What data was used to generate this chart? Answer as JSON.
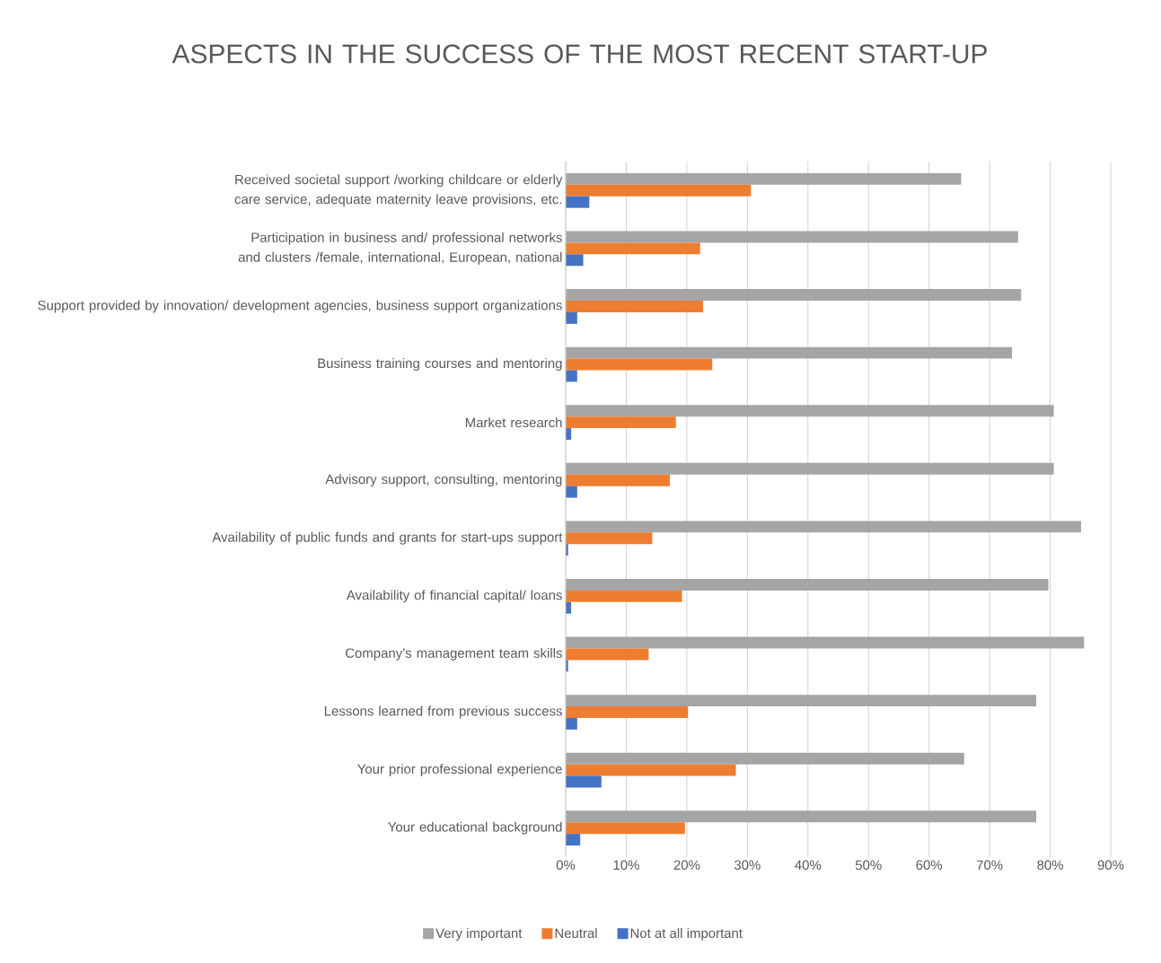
{
  "chart_data": {
    "type": "bar",
    "orientation": "horizontal",
    "title": "ASPECTS IN THE SUCCESS OF THE MOST RECENT START-UP",
    "categories": [
      "Received societal support /working childcare or elderly care service, adequate maternity leave provisions, etc.",
      "Participation in business and/ professional networks and clusters /female, international, European, national",
      "Support provided by innovation/ development agencies, business support organizations",
      "Business training courses and mentoring",
      "Market research",
      "Advisory support, consulting, mentoring",
      "Availability of public funds and grants for start-ups support",
      "Availability of financial capital/ loans",
      "Company’s management team skills",
      "Lessons learned from previous success",
      "Your prior professional experience",
      "Your educational background"
    ],
    "series": [
      {
        "name": "Very important",
        "color": "#a5a5a5",
        "values": [
          65.3,
          74.7,
          75.2,
          73.7,
          80.6,
          80.6,
          85.1,
          79.7,
          85.6,
          77.7,
          65.8,
          77.7
        ]
      },
      {
        "name": "Neutral",
        "color": "#ed7d31",
        "values": [
          30.6,
          22.2,
          22.7,
          24.2,
          18.2,
          17.2,
          14.3,
          19.2,
          13.7,
          20.2,
          28.1,
          19.7
        ]
      },
      {
        "name": "Not at all important",
        "color": "#4472c4",
        "values": [
          3.9,
          2.9,
          1.9,
          1.9,
          0.9,
          1.9,
          0.4,
          0.9,
          0.4,
          1.9,
          5.9,
          2.4
        ]
      }
    ],
    "xlim": [
      0,
      90
    ],
    "xticks": [
      {
        "value": 0,
        "label": "0%"
      },
      {
        "value": 10,
        "label": "10%"
      },
      {
        "value": 20,
        "label": "20%"
      },
      {
        "value": 30,
        "label": "30%"
      },
      {
        "value": 40,
        "label": "40%"
      },
      {
        "value": 50,
        "label": "50%"
      },
      {
        "value": 60,
        "label": "60%"
      },
      {
        "value": 70,
        "label": "70%"
      },
      {
        "value": 80,
        "label": "80%"
      },
      {
        "value": 90,
        "label": "90%"
      }
    ],
    "grid": "x",
    "legend": "bottom"
  }
}
